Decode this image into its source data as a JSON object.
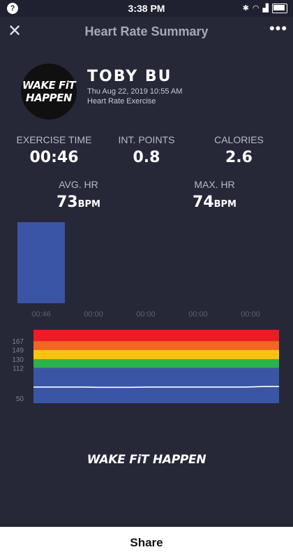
{
  "status_bar": {
    "time": "3:38 PM",
    "left_icon": "?"
  },
  "app_bar": {
    "title": "Heart Rate Summary",
    "close_glyph": "✕",
    "more_glyph": "•••"
  },
  "profile": {
    "logo_line1": "WAKE FiT",
    "logo_line2": "HAPPEN",
    "name": "TOBY BU",
    "date": "Thu Aug 22, 2019 10:55 AM",
    "session_type": "Heart Rate Exercise"
  },
  "stats": {
    "exercise_time": {
      "label": "EXERCISE TIME",
      "value": "00:46"
    },
    "int_points": {
      "label": "INT. POINTS",
      "value": "0.8"
    },
    "calories": {
      "label": "CALORIES",
      "value": "2.6"
    },
    "avg_hr": {
      "label": "AVG. HR",
      "value": "73",
      "unit": "BPM"
    },
    "max_hr": {
      "label": "MAX. HR",
      "value": "74",
      "unit": "BPM"
    }
  },
  "chart_data": [
    {
      "type": "bar",
      "categories": [
        "00:46",
        "00:00",
        "00:00",
        "00:00",
        "00:00"
      ],
      "values": [
        46,
        0,
        0,
        0,
        0
      ],
      "ylim": [
        0,
        46
      ],
      "colors": [
        "#3b55a6"
      ],
      "label_color": "#5d6072"
    },
    {
      "type": "line",
      "yticks": [
        167,
        149,
        130,
        112,
        50
      ],
      "ylim": [
        40,
        190
      ],
      "zones": [
        {
          "from": 167,
          "to": 190,
          "color": "#ec1c24"
        },
        {
          "from": 149,
          "to": 167,
          "color": "#f26522"
        },
        {
          "from": 130,
          "to": 149,
          "color": "#ffc20e"
        },
        {
          "from": 112,
          "to": 130,
          "color": "#2bb24c"
        },
        {
          "from": 40,
          "to": 112,
          "color": "#3b55a6"
        }
      ],
      "series": [
        {
          "values": [
            73,
            73,
            73,
            73,
            72.5,
            72.5,
            72.5,
            73,
            73,
            73,
            73,
            73,
            73,
            73,
            74,
            74
          ]
        }
      ],
      "line_color": "#ffffff"
    }
  ],
  "footer": {
    "logo_text": "WAKE FiT HAPPEN"
  },
  "share": {
    "label": "Share"
  }
}
